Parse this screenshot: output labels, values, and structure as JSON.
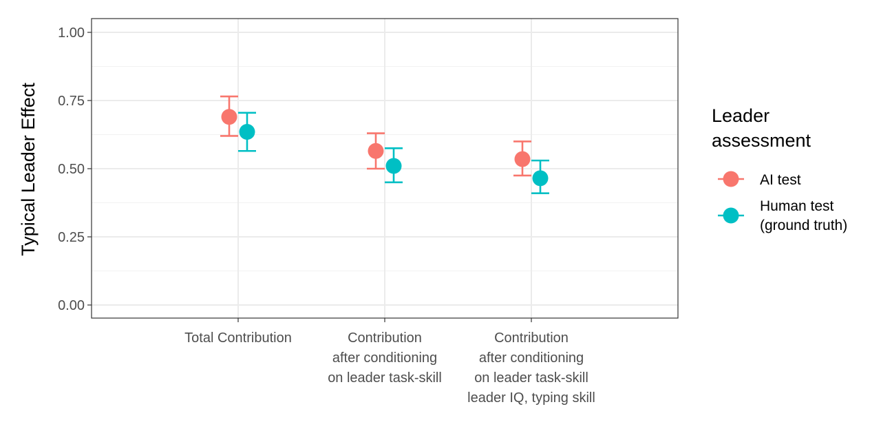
{
  "chart_data": {
    "type": "scatter",
    "ylabel": "Typical Leader Effect",
    "xlabel": "",
    "ylim": [
      0,
      1
    ],
    "yticks": [
      "0.00",
      "0.25",
      "0.50",
      "0.75",
      "1.00"
    ],
    "y_tick_values": [
      0,
      0.25,
      0.5,
      0.75,
      1.0
    ],
    "categories": [
      [
        "Total Contribution"
      ],
      [
        "Contribution",
        "after conditioning",
        "on leader task-skill"
      ],
      [
        "Contribution",
        "after conditioning",
        "on leader task-skill",
        "leader IQ, typing skill"
      ]
    ],
    "grid": true,
    "legend": {
      "title": [
        "Leader",
        "assessment"
      ],
      "position": "right",
      "entries": [
        {
          "label": [
            "AI test"
          ]
        },
        {
          "label": [
            "Human test",
            "(ground truth)"
          ]
        }
      ]
    },
    "series": [
      {
        "name": "AI test",
        "color": "#F8766D",
        "values": [
          0.69,
          0.565,
          0.535
        ],
        "lower": [
          0.62,
          0.5,
          0.475
        ],
        "upper": [
          0.765,
          0.63,
          0.6
        ]
      },
      {
        "name": "Human test (ground truth)",
        "color": "#00BFC4",
        "values": [
          0.635,
          0.51,
          0.465
        ],
        "lower": [
          0.565,
          0.45,
          0.41
        ],
        "upper": [
          0.705,
          0.575,
          0.53
        ]
      }
    ]
  }
}
